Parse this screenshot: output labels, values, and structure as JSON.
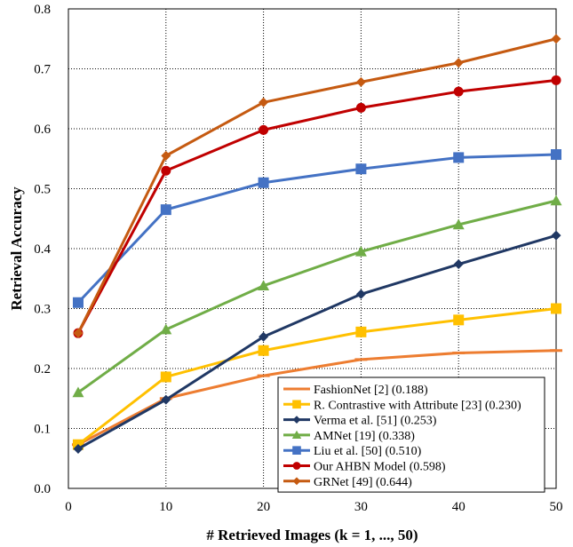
{
  "chart_data": {
    "type": "line",
    "title": "",
    "xlabel": "# Retrieved Images (k = 1, ..., 50)",
    "ylabel": "Retrieval Accuracy",
    "xlim": [
      0,
      50
    ],
    "ylim": [
      0,
      0.8
    ],
    "xticks": [
      0,
      10,
      20,
      30,
      40,
      50
    ],
    "yticks": [
      0.0,
      0.1,
      0.2,
      0.3,
      0.4,
      0.5,
      0.6,
      0.7,
      0.8
    ],
    "xtick_labels": [
      "0",
      "10",
      "20",
      "30",
      "40",
      "50"
    ],
    "ytick_labels": [
      "0.0",
      "0.1",
      "0.2",
      "0.3",
      "0.4",
      "0.5",
      "0.6",
      "0.7",
      "0.8"
    ],
    "grid": true,
    "legend_position": "bottom-right",
    "x": [
      1,
      10,
      20,
      30,
      40,
      50
    ],
    "series": [
      {
        "name": "FashionNet [2] (0.188)",
        "color": "#ED7D31",
        "marker": "dash",
        "values": [
          0.073,
          0.15,
          0.188,
          0.215,
          0.226,
          0.23
        ]
      },
      {
        "name": "R. Contrastive with Attribute [23] (0.230)",
        "color": "#FFC000",
        "marker": "square",
        "values": [
          0.073,
          0.186,
          0.23,
          0.261,
          0.281,
          0.3
        ]
      },
      {
        "name": "Verma et al. [51] (0.253)",
        "color": "#203864",
        "marker": "diamond",
        "values": [
          0.066,
          0.148,
          0.253,
          0.324,
          0.374,
          0.422
        ]
      },
      {
        "name": "AMNet [19] (0.338)",
        "color": "#70AD47",
        "marker": "triangle",
        "values": [
          0.16,
          0.265,
          0.338,
          0.395,
          0.44,
          0.48
        ]
      },
      {
        "name": "Liu et al. [50] (0.510)",
        "color": "#4472C4",
        "marker": "square",
        "values": [
          0.31,
          0.465,
          0.51,
          0.533,
          0.552,
          0.557
        ]
      },
      {
        "name": "Our AHBN Model (0.598)",
        "color": "#C00000",
        "marker": "circle",
        "values": [
          0.259,
          0.53,
          0.598,
          0.635,
          0.662,
          0.681
        ]
      },
      {
        "name": "GRNet [49] (0.644)",
        "color": "#C55A11",
        "marker": "diamond",
        "values": [
          0.259,
          0.555,
          0.644,
          0.678,
          0.71,
          0.75
        ]
      }
    ]
  }
}
